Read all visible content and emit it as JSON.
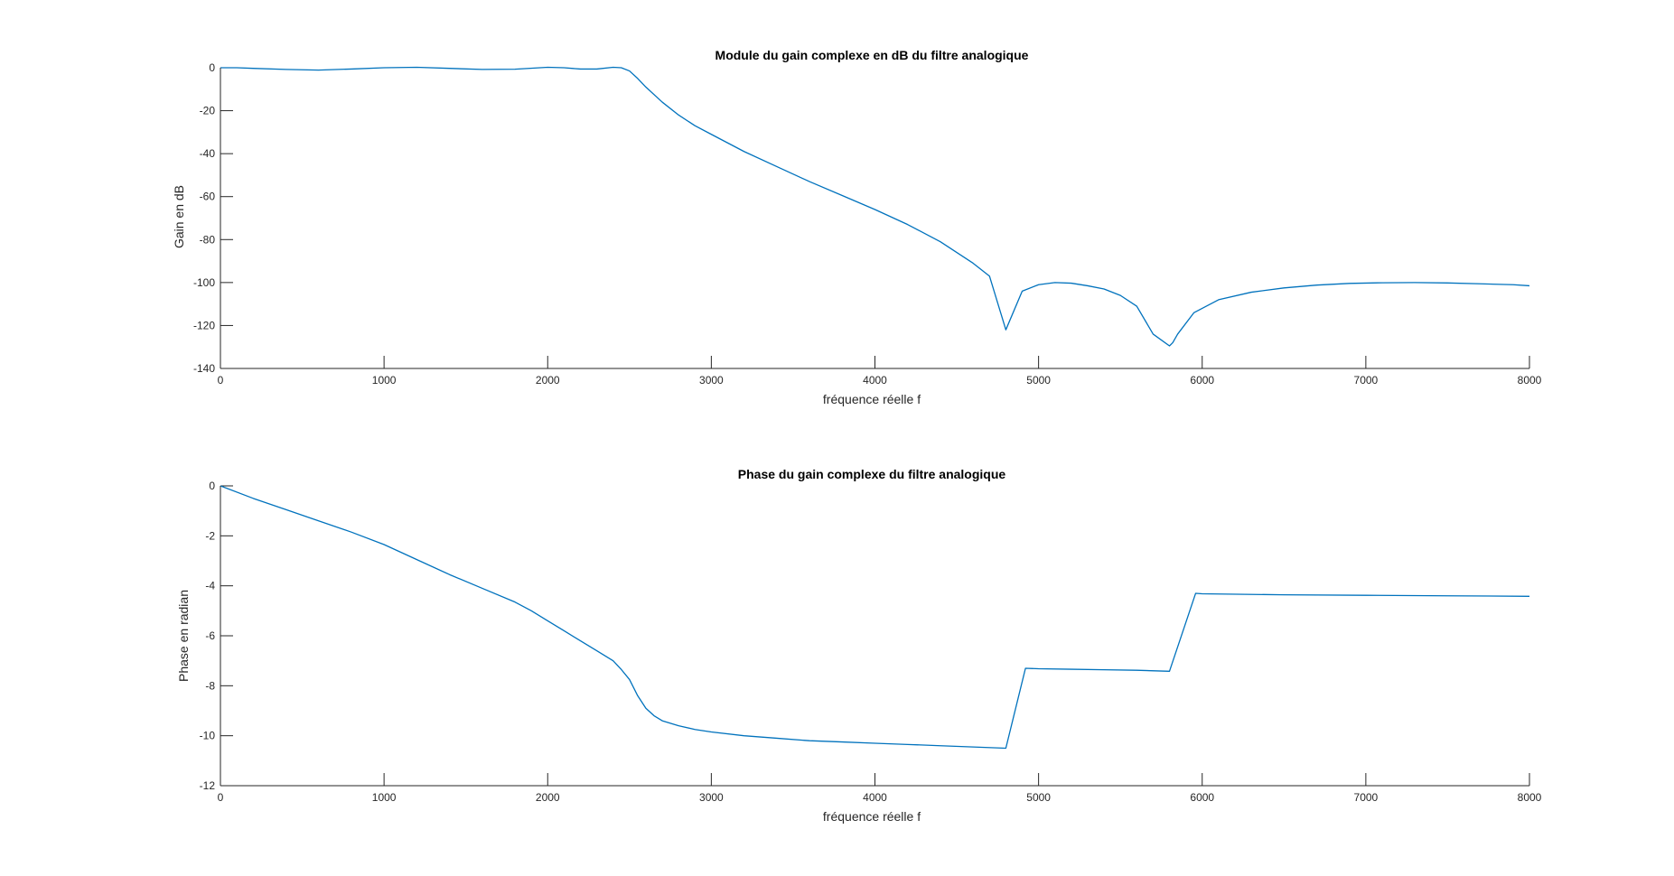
{
  "figure": {
    "background": "#ffffff"
  },
  "chart_data": [
    {
      "type": "line",
      "title": "Module du gain complexe en dB du filtre analogique",
      "xlabel": "fréquence réelle f",
      "ylabel": "Gain en dB",
      "xlim": [
        0,
        8000
      ],
      "ylim": [
        -140,
        0
      ],
      "xticks": [
        0,
        1000,
        2000,
        3000,
        4000,
        5000,
        6000,
        7000,
        8000
      ],
      "yticks": [
        0,
        -20,
        -40,
        -60,
        -80,
        -100,
        -120,
        -140
      ],
      "grid": false,
      "legend": "none",
      "series": [
        {
          "color": "#0072BD",
          "x": [
            0,
            100,
            200,
            400,
            600,
            800,
            1000,
            1200,
            1400,
            1600,
            1800,
            2000,
            2100,
            2200,
            2300,
            2400,
            2450,
            2500,
            2550,
            2600,
            2700,
            2800,
            2900,
            3000,
            3200,
            3400,
            3600,
            3800,
            4000,
            4200,
            4400,
            4500,
            4600,
            4700,
            4800,
            4900,
            5000,
            5100,
            5200,
            5300,
            5400,
            5500,
            5600,
            5700,
            5800,
            5820,
            5850,
            5950,
            6100,
            6300,
            6500,
            6700,
            6900,
            7100,
            7300,
            7500,
            7700,
            7900,
            8000
          ],
          "y": [
            0,
            0,
            -0.3,
            -0.8,
            -1.1,
            -0.6,
            0,
            0.2,
            -0.3,
            -0.8,
            -0.7,
            0.2,
            0,
            -0.6,
            -0.6,
            0.2,
            0,
            -1.5,
            -5,
            -9,
            -16,
            -22,
            -27,
            -31,
            -39,
            -46,
            -53,
            -59.5,
            -66,
            -73,
            -81,
            -86,
            -91,
            -97,
            -122,
            -104,
            -101,
            -100,
            -100.3,
            -101.5,
            -103,
            -106,
            -111,
            -124,
            -129.5,
            -128,
            -124,
            -114,
            -108,
            -104.5,
            -102.5,
            -101.2,
            -100.4,
            -100.1,
            -100,
            -100.2,
            -100.6,
            -101,
            -101.5
          ]
        }
      ]
    },
    {
      "type": "line",
      "title": "Phase du gain complexe du filtre analogique",
      "xlabel": "fréquence réelle f",
      "ylabel": "Phase en radian",
      "xlim": [
        0,
        8000
      ],
      "ylim": [
        -12,
        0
      ],
      "xticks": [
        0,
        1000,
        2000,
        3000,
        4000,
        5000,
        6000,
        7000,
        8000
      ],
      "yticks": [
        0,
        -2,
        -4,
        -6,
        -8,
        -10,
        -12
      ],
      "grid": false,
      "legend": "none",
      "series": [
        {
          "color": "#0072BD",
          "x": [
            0,
            200,
            400,
            600,
            800,
            1000,
            1200,
            1400,
            1600,
            1800,
            1900,
            2000,
            2100,
            2200,
            2300,
            2400,
            2450,
            2500,
            2550,
            2600,
            2650,
            2700,
            2800,
            2900,
            3000,
            3200,
            3400,
            3600,
            3800,
            4000,
            4200,
            4400,
            4600,
            4800,
            4920,
            5000,
            5200,
            5400,
            5600,
            5800,
            5960,
            6000,
            6500,
            7000,
            7500,
            8000
          ],
          "y": [
            0,
            -0.5,
            -0.95,
            -1.4,
            -1.85,
            -2.35,
            -2.95,
            -3.55,
            -4.1,
            -4.65,
            -5.0,
            -5.4,
            -5.8,
            -6.2,
            -6.6,
            -7.0,
            -7.35,
            -7.75,
            -8.4,
            -8.9,
            -9.2,
            -9.4,
            -9.6,
            -9.75,
            -9.85,
            -10.0,
            -10.1,
            -10.2,
            -10.25,
            -10.3,
            -10.35,
            -10.4,
            -10.45,
            -10.5,
            -7.3,
            -7.32,
            -7.34,
            -7.36,
            -7.38,
            -7.42,
            -4.3,
            -4.32,
            -4.36,
            -4.38,
            -4.4,
            -4.42
          ]
        }
      ]
    }
  ]
}
